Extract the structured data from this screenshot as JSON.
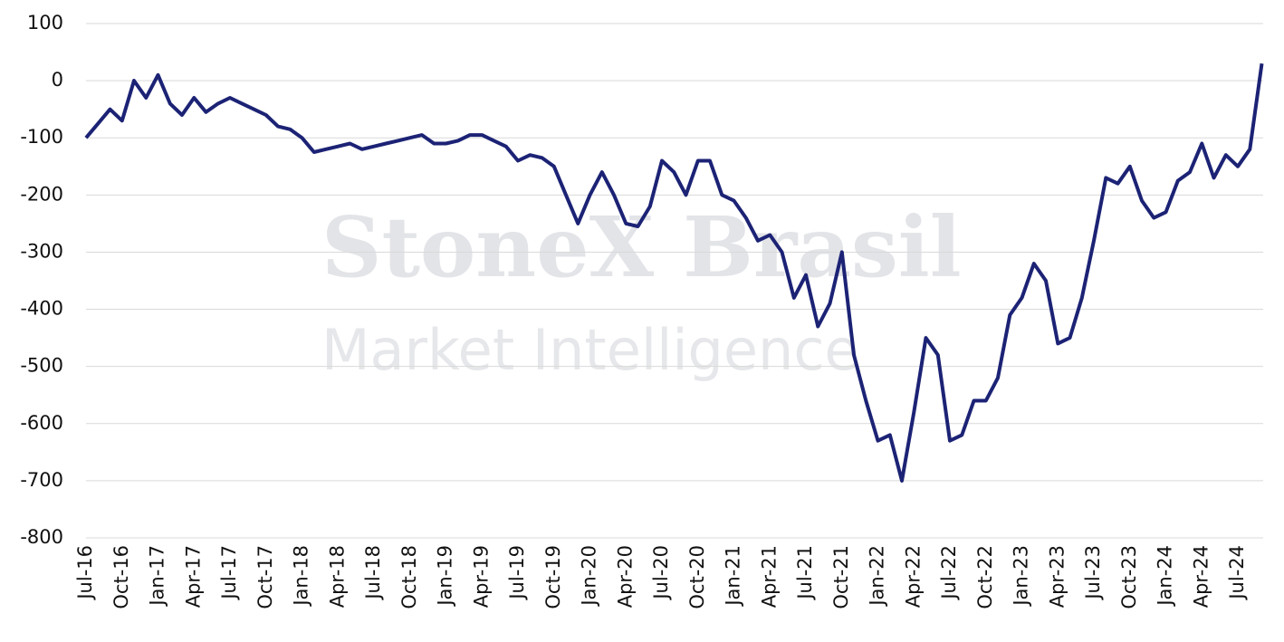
{
  "chart_data": {
    "type": "line",
    "watermark": [
      "StoneX Brasil",
      "Market Intelligence"
    ],
    "categories": [
      "Jul-16",
      null,
      null,
      "Oct-16",
      null,
      null,
      "Jan-17",
      null,
      null,
      "Apr-17",
      null,
      null,
      "Jul-17",
      null,
      null,
      "Oct-17",
      null,
      null,
      "Jan-18",
      null,
      null,
      "Apr-18",
      null,
      null,
      "Jul-18",
      null,
      null,
      "Oct-18",
      null,
      null,
      "Jan-19",
      null,
      null,
      "Apr-19",
      null,
      null,
      "Jul-19",
      null,
      null,
      "Oct-19",
      null,
      null,
      "Jan-20",
      null,
      null,
      "Apr-20",
      null,
      null,
      "Jul-20",
      null,
      null,
      "Oct-20",
      null,
      null,
      "Jan-21",
      null,
      null,
      "Apr-21",
      null,
      null,
      "Jul-21",
      null,
      null,
      "Oct-21",
      null,
      null,
      "Jan-22",
      null,
      null,
      "Apr-22",
      null,
      null,
      "Jul-22",
      null,
      null,
      "Oct-22",
      null,
      null,
      "Jan-23",
      null,
      null,
      "Apr-23",
      null,
      null,
      "Jul-23",
      null,
      null,
      "Oct-23",
      null,
      null,
      "Jan-24",
      null,
      null,
      "Apr-24",
      null,
      null,
      "Jul-24",
      null,
      null
    ],
    "series": [
      {
        "color": "#1c2375",
        "values": [
          -100,
          -75,
          -50,
          -70,
          0,
          -30,
          10,
          -40,
          -60,
          -30,
          -55,
          -40,
          -30,
          -40,
          -50,
          -60,
          -80,
          -85,
          -100,
          -125,
          -120,
          -115,
          -110,
          -120,
          -115,
          -110,
          -105,
          -100,
          -95,
          -110,
          -110,
          -105,
          -95,
          -95,
          -105,
          -115,
          -140,
          -130,
          -135,
          -150,
          -200,
          -250,
          -200,
          -160,
          -200,
          -250,
          -255,
          -220,
          -140,
          -160,
          -200,
          -140,
          -140,
          -200,
          -210,
          -240,
          -280,
          -270,
          -300,
          -380,
          -340,
          -430,
          -390,
          -300,
          -480,
          -560,
          -630,
          -620,
          -700,
          -580,
          -450,
          -480,
          -630,
          -620,
          -560,
          -560,
          -520,
          -410,
          -380,
          -320,
          -350,
          -460,
          -450,
          -380,
          -280,
          -170,
          -180,
          -150,
          -210,
          -240,
          -230,
          -175,
          -160,
          -110,
          -170,
          -130,
          -150,
          -120,
          30
        ]
      }
    ],
    "ylim": [
      -800,
      100
    ],
    "yticks": [
      -800,
      -700,
      -600,
      -500,
      -400,
      -300,
      -200,
      -100,
      0,
      100
    ],
    "grid": true
  }
}
